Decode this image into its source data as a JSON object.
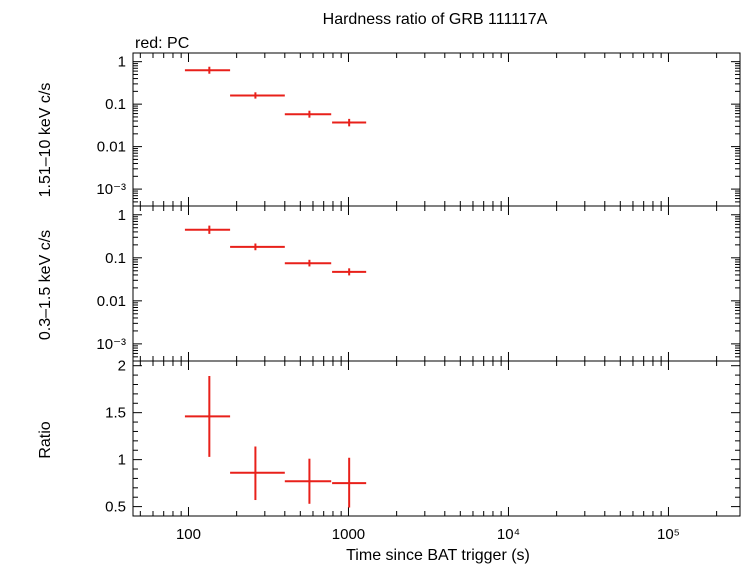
{
  "title": "Hardness ratio of GRB 111117A",
  "legend": "red: PC",
  "colors": {
    "series": "#e8201a",
    "axes": "#000000"
  },
  "chart_data": [
    {
      "type": "scatter",
      "panel": "hard",
      "ylabel": "1.51–10 keV c/s",
      "yscale": "log",
      "ylim": [
        0.0004,
        1.6
      ],
      "ytick_values": [
        1,
        0.1,
        0.01,
        0.001
      ],
      "ytick_labels": [
        "1",
        "0.1",
        "0.01",
        "10⁻³"
      ],
      "xscale": "log",
      "xlim": [
        45,
        280000
      ],
      "series": [
        {
          "color": "#e8201a",
          "points": [
            {
              "x": 135,
              "xlo": 95,
              "xhi": 182,
              "y": 0.63,
              "ylo": 0.52,
              "yhi": 0.76
            },
            {
              "x": 262,
              "xlo": 182,
              "xhi": 400,
              "y": 0.16,
              "ylo": 0.135,
              "yhi": 0.19
            },
            {
              "x": 570,
              "xlo": 400,
              "xhi": 780,
              "y": 0.058,
              "ylo": 0.048,
              "yhi": 0.07
            },
            {
              "x": 1010,
              "xlo": 790,
              "xhi": 1290,
              "y": 0.037,
              "ylo": 0.03,
              "yhi": 0.045
            }
          ]
        }
      ]
    },
    {
      "type": "scatter",
      "panel": "soft",
      "ylabel": "0.3–1.5 keV c/s",
      "yscale": "log",
      "ylim": [
        0.0004,
        1.6
      ],
      "ytick_values": [
        1,
        0.1,
        0.01,
        0.001
      ],
      "ytick_labels": [
        "1",
        "0.1",
        "0.01",
        "10⁻³"
      ],
      "xscale": "log",
      "xlim": [
        45,
        280000
      ],
      "series": [
        {
          "color": "#e8201a",
          "points": [
            {
              "x": 135,
              "xlo": 95,
              "xhi": 182,
              "y": 0.45,
              "ylo": 0.36,
              "yhi": 0.56
            },
            {
              "x": 262,
              "xlo": 182,
              "xhi": 400,
              "y": 0.18,
              "ylo": 0.15,
              "yhi": 0.215
            },
            {
              "x": 570,
              "xlo": 400,
              "xhi": 780,
              "y": 0.075,
              "ylo": 0.063,
              "yhi": 0.09
            },
            {
              "x": 1010,
              "xlo": 790,
              "xhi": 1290,
              "y": 0.047,
              "ylo": 0.039,
              "yhi": 0.057
            }
          ]
        }
      ]
    },
    {
      "type": "scatter",
      "panel": "ratio",
      "ylabel": "Ratio",
      "xlabel": "Time since BAT trigger (s)",
      "yscale": "linear",
      "ylim": [
        0.4,
        2.05
      ],
      "ytick_values": [
        2,
        1.5,
        1,
        0.5
      ],
      "ytick_labels": [
        "2",
        "1.5",
        "1",
        "0.5"
      ],
      "xscale": "log",
      "xlim": [
        45,
        280000
      ],
      "xtick_values": [
        100,
        1000,
        10000,
        100000
      ],
      "xtick_labels": [
        "100",
        "1000",
        "10⁴",
        "10⁵"
      ],
      "series": [
        {
          "color": "#e8201a",
          "points": [
            {
              "x": 135,
              "xlo": 95,
              "xhi": 182,
              "y": 1.46,
              "ylo": 1.03,
              "yhi": 1.89
            },
            {
              "x": 262,
              "xlo": 182,
              "xhi": 400,
              "y": 0.86,
              "ylo": 0.57,
              "yhi": 1.14
            },
            {
              "x": 570,
              "xlo": 400,
              "xhi": 780,
              "y": 0.77,
              "ylo": 0.53,
              "yhi": 1.01
            },
            {
              "x": 1010,
              "xlo": 790,
              "xhi": 1290,
              "y": 0.75,
              "ylo": 0.49,
              "yhi": 1.02
            }
          ]
        }
      ]
    }
  ]
}
